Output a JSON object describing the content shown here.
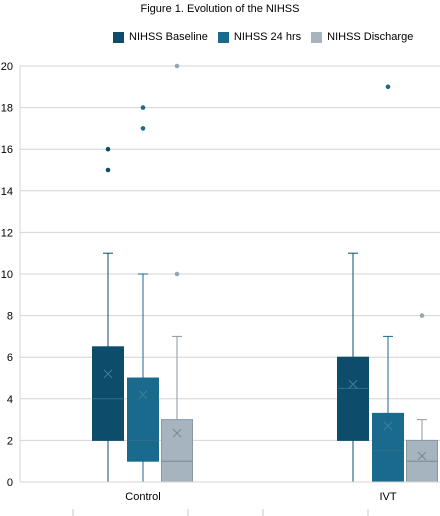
{
  "chart_data": {
    "type": "box",
    "title": "Figure 1. Evolution of the NIHSS",
    "categories": [
      "Control",
      "IVT"
    ],
    "ylim": [
      0,
      20
    ],
    "yticks": [
      0,
      2,
      4,
      6,
      8,
      10,
      12,
      14,
      16,
      18,
      20
    ],
    "grid": true,
    "legend_position": "top",
    "series": [
      {
        "name": "NIHSS Baseline",
        "color": "#0d4d6b",
        "boxes": [
          {
            "category": "Control",
            "min": 0,
            "q1": 2,
            "median": 4,
            "q3": 6.5,
            "max": 11,
            "mean": 5.2,
            "outliers": [
              15,
              16
            ]
          },
          {
            "category": "IVT",
            "min": 0,
            "q1": 2,
            "median": 4.5,
            "q3": 6,
            "max": 11,
            "mean": 4.7,
            "outliers": []
          }
        ]
      },
      {
        "name": "NIHSS 24 hrs",
        "color": "#1a6a8e",
        "boxes": [
          {
            "category": "Control",
            "min": 0,
            "q1": 1,
            "median": 2,
            "q3": 5,
            "max": 10,
            "mean": 4.2,
            "outliers": [
              17,
              18
            ]
          },
          {
            "category": "IVT",
            "min": 0,
            "q1": 0,
            "median": 1.5,
            "q3": 3.3,
            "max": 7,
            "mean": 2.7,
            "outliers": [
              19
            ]
          }
        ]
      },
      {
        "name": "NIHSS Discharge",
        "color": "#a6b4bf",
        "boxes": [
          {
            "category": "Control",
            "min": 0,
            "q1": 0,
            "median": 1,
            "q3": 3,
            "max": 7,
            "mean": 2.35,
            "outliers": [
              10,
              20
            ]
          },
          {
            "category": "IVT",
            "min": 0,
            "q1": 0,
            "median": 1,
            "q3": 2,
            "max": 3,
            "mean": 1.25,
            "outliers": [
              8
            ]
          }
        ]
      }
    ]
  }
}
